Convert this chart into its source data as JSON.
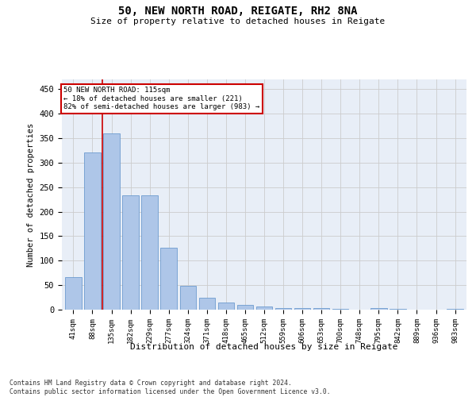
{
  "title1": "50, NEW NORTH ROAD, REIGATE, RH2 8NA",
  "title2": "Size of property relative to detached houses in Reigate",
  "xlabel": "Distribution of detached houses by size in Reigate",
  "ylabel": "Number of detached properties",
  "bar_labels": [
    "41sqm",
    "88sqm",
    "135sqm",
    "182sqm",
    "229sqm",
    "277sqm",
    "324sqm",
    "371sqm",
    "418sqm",
    "465sqm",
    "512sqm",
    "559sqm",
    "606sqm",
    "653sqm",
    "700sqm",
    "748sqm",
    "795sqm",
    "842sqm",
    "889sqm",
    "936sqm",
    "983sqm"
  ],
  "bar_values": [
    67,
    321,
    359,
    234,
    234,
    127,
    49,
    24,
    15,
    10,
    7,
    4,
    4,
    3,
    1,
    0,
    3,
    1,
    0,
    0,
    1
  ],
  "bar_color": "#aec6e8",
  "bar_edgecolor": "#5b8fc9",
  "grid_color": "#cccccc",
  "background_color": "#e8eef7",
  "annotation_text": "50 NEW NORTH ROAD: 115sqm\n← 18% of detached houses are smaller (221)\n82% of semi-detached houses are larger (983) →",
  "annotation_box_edgecolor": "#cc0000",
  "vline_color": "#cc0000",
  "ylim": [
    0,
    470
  ],
  "yticks": [
    0,
    50,
    100,
    150,
    200,
    250,
    300,
    350,
    400,
    450
  ],
  "footer_text": "Contains HM Land Registry data © Crown copyright and database right 2024.\nContains public sector information licensed under the Open Government Licence v3.0."
}
